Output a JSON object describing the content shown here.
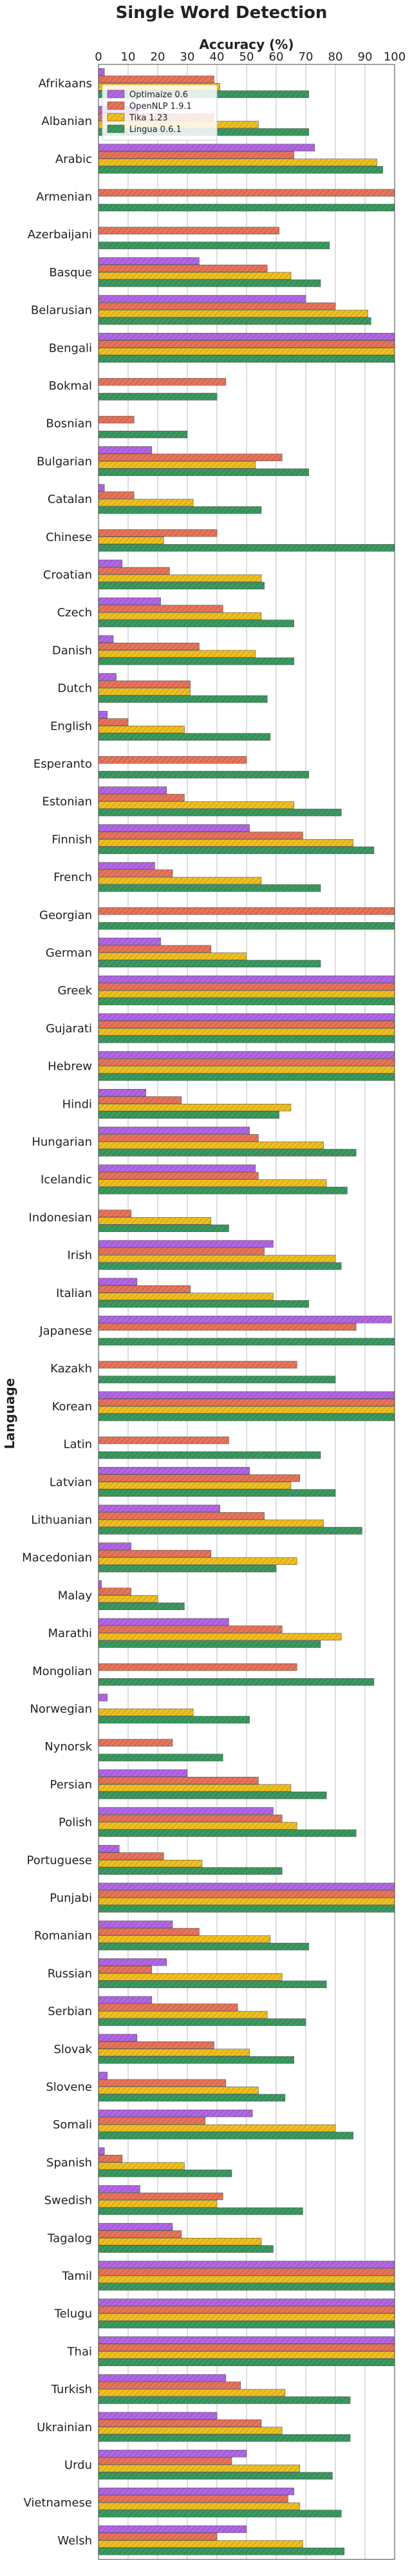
{
  "chart_data": {
    "type": "bar",
    "orientation": "horizontal",
    "title": "Single Word Detection",
    "xlabel": "Accuracy (%)",
    "ylabel": "Language",
    "xlim": [
      0,
      100
    ],
    "xticks": [
      0,
      10,
      20,
      30,
      40,
      50,
      60,
      70,
      80,
      90,
      100
    ],
    "grid": true,
    "legend_position": "top-left",
    "categories": [
      "Afrikaans",
      "Albanian",
      "Arabic",
      "Armenian",
      "Azerbaijani",
      "Basque",
      "Belarusian",
      "Bengali",
      "Bokmal",
      "Bosnian",
      "Bulgarian",
      "Catalan",
      "Chinese",
      "Croatian",
      "Czech",
      "Danish",
      "Dutch",
      "English",
      "Esperanto",
      "Estonian",
      "Finnish",
      "French",
      "Georgian",
      "German",
      "Greek",
      "Gujarati",
      "Hebrew",
      "Hindi",
      "Hungarian",
      "Icelandic",
      "Indonesian",
      "Irish",
      "Italian",
      "Japanese",
      "Kazakh",
      "Korean",
      "Latin",
      "Latvian",
      "Lithuanian",
      "Macedonian",
      "Malay",
      "Marathi",
      "Mongolian",
      "Norwegian",
      "Nynorsk",
      "Persian",
      "Polish",
      "Portuguese",
      "Punjabi",
      "Romanian",
      "Russian",
      "Serbian",
      "Slovak",
      "Slovene",
      "Somali",
      "Spanish",
      "Swedish",
      "Tagalog",
      "Tamil",
      "Telugu",
      "Thai",
      "Turkish",
      "Ukrainian",
      "Urdu",
      "Vietnamese",
      "Welsh"
    ],
    "series": [
      {
        "name": "Optimaize 0.6",
        "color": "#b366e6",
        "values": [
          2,
          13,
          73,
          0,
          0,
          34,
          70,
          100,
          0,
          0,
          18,
          2,
          0,
          8,
          21,
          5,
          6,
          3,
          0,
          23,
          51,
          19,
          0,
          21,
          100,
          100,
          100,
          16,
          51,
          53,
          0,
          59,
          13,
          99,
          0,
          100,
          0,
          51,
          41,
          11,
          1,
          44,
          0,
          3,
          0,
          30,
          59,
          7,
          100,
          25,
          23,
          18,
          13,
          3,
          52,
          2,
          14,
          25,
          100,
          100,
          100,
          43,
          40,
          50,
          66,
          50
        ]
      },
      {
        "name": "OpenNLP 1.9.1",
        "color": "#e8745a",
        "values": [
          39,
          39,
          66,
          100,
          61,
          57,
          80,
          100,
          43,
          12,
          62,
          12,
          40,
          24,
          42,
          34,
          31,
          10,
          50,
          29,
          69,
          25,
          100,
          38,
          100,
          100,
          100,
          28,
          54,
          54,
          11,
          56,
          31,
          87,
          67,
          100,
          44,
          68,
          56,
          38,
          11,
          62,
          67,
          0,
          25,
          54,
          62,
          22,
          100,
          34,
          18,
          47,
          39,
          43,
          36,
          8,
          42,
          28,
          100,
          100,
          100,
          48,
          55,
          45,
          64,
          40
        ]
      },
      {
        "name": "Tika 1.23",
        "color": "#f0c020",
        "values": [
          41,
          54,
          94,
          0,
          0,
          65,
          91,
          100,
          0,
          0,
          53,
          32,
          22,
          55,
          55,
          53,
          31,
          29,
          0,
          66,
          86,
          55,
          0,
          50,
          100,
          100,
          100,
          65,
          76,
          77,
          38,
          80,
          59,
          0,
          0,
          100,
          0,
          65,
          76,
          67,
          20,
          82,
          0,
          32,
          0,
          65,
          67,
          35,
          100,
          58,
          62,
          57,
          51,
          54,
          80,
          29,
          40,
          55,
          100,
          100,
          100,
          63,
          62,
          68,
          68,
          69
        ]
      },
      {
        "name": "Lingua 0.6.1",
        "color": "#3a9a60",
        "values": [
          71,
          71,
          96,
          100,
          78,
          75,
          92,
          100,
          40,
          30,
          71,
          55,
          100,
          56,
          66,
          66,
          57,
          58,
          71,
          82,
          93,
          75,
          100,
          75,
          100,
          100,
          100,
          61,
          87,
          84,
          44,
          82,
          71,
          100,
          80,
          100,
          75,
          80,
          89,
          60,
          29,
          75,
          93,
          51,
          42,
          77,
          87,
          62,
          100,
          71,
          77,
          70,
          66,
          63,
          86,
          45,
          69,
          59,
          100,
          100,
          100,
          85,
          85,
          79,
          82,
          83
        ]
      }
    ]
  }
}
